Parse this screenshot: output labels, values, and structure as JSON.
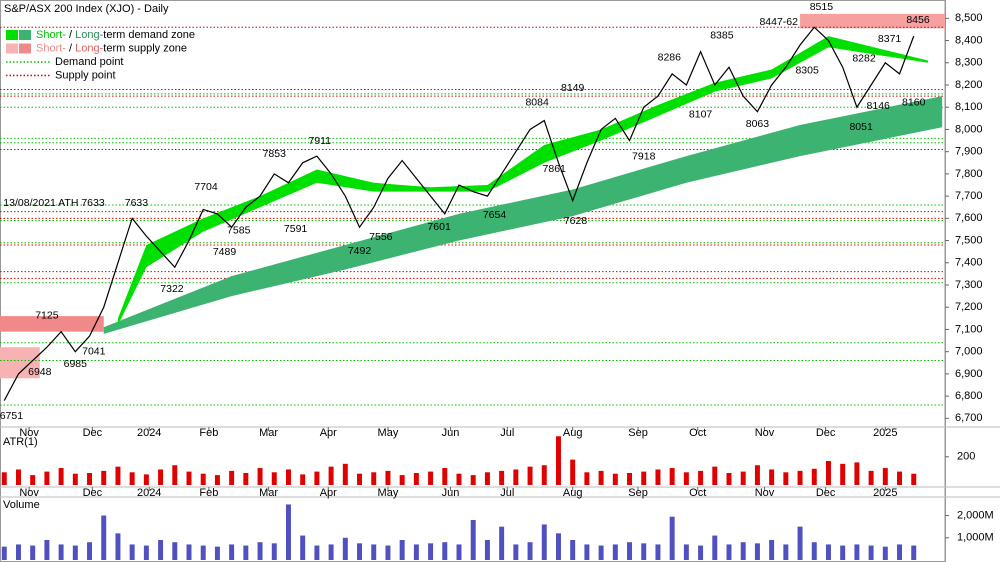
{
  "chart_data": {
    "type": "line",
    "title": "S&P/ASX 200 Index (XJO) - Daily",
    "values": [
      6780,
      6900,
      6960,
      7020,
      7090,
      7000,
      7070,
      7200,
      7400,
      7600,
      7520,
      7450,
      7380,
      7500,
      7640,
      7620,
      7560,
      7650,
      7700,
      7800,
      7760,
      7850,
      7880,
      7800,
      7700,
      7560,
      7650,
      7780,
      7860,
      7780,
      7700,
      7620,
      7750,
      7720,
      7700,
      7800,
      7900,
      8000,
      8040,
      7850,
      7680,
      7850,
      8000,
      8050,
      7950,
      8100,
      8150,
      8250,
      8200,
      8350,
      8200,
      8280,
      8150,
      8080,
      8200,
      8280,
      8380,
      8460,
      8400,
      8280,
      8100,
      8200,
      8300,
      8250,
      8420
    ],
    "color": "#000000",
    "xlim": [
      -0.3,
      66.2
    ],
    "xticks": [
      {
        "value": 1.75,
        "label": "Nov"
      },
      {
        "value": 6.2,
        "label": "Dec"
      },
      {
        "value": 10.2,
        "label": "2024"
      },
      {
        "value": 14.4,
        "label": "Feb"
      },
      {
        "value": 18.6,
        "label": "Mar"
      },
      {
        "value": 22.8,
        "label": "Apr"
      },
      {
        "value": 27,
        "label": "May"
      },
      {
        "value": 31.4,
        "label": "Jun"
      },
      {
        "value": 35.4,
        "label": "Jul"
      },
      {
        "value": 40,
        "label": "Aug"
      },
      {
        "value": 44.6,
        "label": "Sep"
      },
      {
        "value": 48.8,
        "label": "Oct"
      },
      {
        "value": 53.5,
        "label": "Nov"
      },
      {
        "value": 57.8,
        "label": "Dec"
      },
      {
        "value": 62,
        "label": "2025"
      }
    ],
    "ylim": [
      6670,
      8560
    ],
    "yticks": [
      {
        "value": 6700,
        "label": "6,700"
      },
      {
        "value": 6800,
        "label": "6,800"
      },
      {
        "value": 6900,
        "label": "6,900"
      },
      {
        "value": 7000,
        "label": "7,000"
      },
      {
        "value": 7100,
        "label": "7,100"
      },
      {
        "value": 7200,
        "label": "7,200"
      },
      {
        "value": 7300,
        "label": "7,300"
      },
      {
        "value": 7400,
        "label": "7,400"
      },
      {
        "value": 7500,
        "label": "7,500"
      },
      {
        "value": 7600,
        "label": "7,600"
      },
      {
        "value": 7700,
        "label": "7,700"
      },
      {
        "value": 7800,
        "label": "7,800"
      },
      {
        "value": 7900,
        "label": "7,900"
      },
      {
        "value": 8000,
        "label": "8,000"
      },
      {
        "value": 8100,
        "label": "8,100"
      },
      {
        "value": 8200,
        "label": "8,200"
      },
      {
        "value": 8300,
        "label": "8,300"
      },
      {
        "value": 8400,
        "label": "8,400"
      },
      {
        "value": 8500,
        "label": "8,500"
      }
    ],
    "demand_zone_long": {
      "color": "#3cb371",
      "x": [
        7,
        16,
        24,
        32,
        40,
        48,
        56,
        66
      ],
      "lower": [
        7080,
        7250,
        7370,
        7500,
        7610,
        7760,
        7880,
        8010
      ],
      "upper": [
        7110,
        7340,
        7480,
        7620,
        7730,
        7880,
        8020,
        8150
      ]
    },
    "demand_zone_short": {
      "color": "#00e000",
      "x": [
        8,
        10,
        14,
        18,
        22,
        26,
        30,
        34,
        38,
        42,
        46,
        50,
        54,
        58,
        65
      ],
      "lower": [
        7120,
        7380,
        7540,
        7650,
        7760,
        7720,
        7720,
        7720,
        7850,
        7950,
        8060,
        8170,
        8230,
        8370,
        8300
      ],
      "upper": [
        7150,
        7480,
        7600,
        7700,
        7820,
        7760,
        7740,
        7750,
        7930,
        8000,
        8110,
        8210,
        8270,
        8420,
        8310
      ]
    },
    "supply_zones": [
      {
        "color": "#f7b3b3",
        "x": [
          -0.3,
          2.5
        ],
        "lower": 6880,
        "upper": 7020
      },
      {
        "color": "#f08a8a",
        "x": [
          -0.3,
          7
        ],
        "lower": 7090,
        "upper": 7160
      },
      {
        "color": "#f6a0a0",
        "x": [
          56,
          66.2
        ],
        "lower": 8455,
        "upper": 8520
      }
    ],
    "demand_points": {
      "color": "#00c000",
      "levels": [
        6760,
        6960,
        7040,
        7310,
        7490,
        7590,
        7660,
        7940,
        7960,
        8100,
        8160
      ]
    },
    "supply_points": {
      "color": "#e00000",
      "levels": [
        7330,
        7360,
        7480,
        7600,
        7630,
        7910,
        8150,
        8180,
        8460
      ]
    },
    "annotations": [
      {
        "text": "6751",
        "x": 0.5,
        "y": 6751,
        "pos": "below"
      },
      {
        "text": "6948",
        "x": 2.5,
        "y": 6948,
        "pos": "below"
      },
      {
        "text": "7125",
        "x": 3,
        "y": 7125,
        "pos": "above"
      },
      {
        "text": "6985",
        "x": 5,
        "y": 6985,
        "pos": "below"
      },
      {
        "text": "7041",
        "x": 6.3,
        "y": 7041,
        "pos": "below"
      },
      {
        "text": "13/08/2021 ATH 7633",
        "x": 3.5,
        "y": 7633,
        "pos": "above"
      },
      {
        "text": "7633",
        "x": 9.3,
        "y": 7633,
        "pos": "above"
      },
      {
        "text": "7322",
        "x": 11.8,
        "y": 7322,
        "pos": "below"
      },
      {
        "text": "7704",
        "x": 14.2,
        "y": 7704,
        "pos": "above"
      },
      {
        "text": "7489",
        "x": 15.5,
        "y": 7489,
        "pos": "below"
      },
      {
        "text": "7585",
        "x": 16.5,
        "y": 7585,
        "pos": "below"
      },
      {
        "text": "7853",
        "x": 19,
        "y": 7853,
        "pos": "above"
      },
      {
        "text": "7591",
        "x": 20.5,
        "y": 7591,
        "pos": "below"
      },
      {
        "text": "7911",
        "x": 22.2,
        "y": 7911,
        "pos": "above"
      },
      {
        "text": "7492",
        "x": 25,
        "y": 7492,
        "pos": "below"
      },
      {
        "text": "7556",
        "x": 26.5,
        "y": 7556,
        "pos": "below"
      },
      {
        "text": "7601",
        "x": 30.6,
        "y": 7601,
        "pos": "below"
      },
      {
        "text": "7654",
        "x": 34.5,
        "y": 7654,
        "pos": "below"
      },
      {
        "text": "8084",
        "x": 37.5,
        "y": 8084,
        "pos": "above"
      },
      {
        "text": "7861",
        "x": 38.7,
        "y": 7861,
        "pos": "below"
      },
      {
        "text": "8149",
        "x": 40,
        "y": 8149,
        "pos": "above"
      },
      {
        "text": "7628",
        "x": 40.2,
        "y": 7628,
        "pos": "below"
      },
      {
        "text": "7918",
        "x": 45,
        "y": 7918,
        "pos": "below"
      },
      {
        "text": "8286",
        "x": 46.8,
        "y": 8286,
        "pos": "above"
      },
      {
        "text": "8385",
        "x": 50.5,
        "y": 8385,
        "pos": "above"
      },
      {
        "text": "8107",
        "x": 49,
        "y": 8107,
        "pos": "below"
      },
      {
        "text": "8063",
        "x": 53,
        "y": 8063,
        "pos": "below"
      },
      {
        "text": "8447-62",
        "x": 54.5,
        "y": 8447,
        "pos": "above"
      },
      {
        "text": "8515",
        "x": 57.5,
        "y": 8515,
        "pos": "above"
      },
      {
        "text": "8305",
        "x": 56.5,
        "y": 8305,
        "pos": "below"
      },
      {
        "text": "8282",
        "x": 60.5,
        "y": 8282,
        "pos": "above"
      },
      {
        "text": "8051",
        "x": 60.3,
        "y": 8051,
        "pos": "below"
      },
      {
        "text": "8146",
        "x": 61.5,
        "y": 8146,
        "pos": "below"
      },
      {
        "text": "8371",
        "x": 62.3,
        "y": 8371,
        "pos": "above"
      },
      {
        "text": "8160",
        "x": 64,
        "y": 8160,
        "pos": "below"
      },
      {
        "text": "8456",
        "x": 64.3,
        "y": 8456,
        "pos": "above"
      }
    ],
    "legend": [
      {
        "swatches": [
          "#00e000",
          "#3cb371"
        ],
        "parts": [
          {
            "text": "Short-",
            "color": "#00c000"
          },
          {
            "text": " / ",
            "color": "#000000"
          },
          {
            "text": "Long-",
            "color": "#2e8b57"
          },
          {
            "text": "term demand zone",
            "color": "#000000"
          }
        ]
      },
      {
        "swatches": [
          "#f7b3b3",
          "#f08a8a"
        ],
        "parts": [
          {
            "text": "Short-",
            "color": "#f08a8a"
          },
          {
            "text": " / ",
            "color": "#000000"
          },
          {
            "text": "Long-",
            "color": "#e06060"
          },
          {
            "text": "term supply zone",
            "color": "#000000"
          }
        ]
      },
      {
        "line": "#00c000",
        "parts": [
          {
            "text": "Demand point",
            "color": "#000000"
          }
        ]
      },
      {
        "line": "#e00000",
        "parts": [
          {
            "text": "Supply point",
            "color": "#000000"
          }
        ]
      }
    ],
    "atr": {
      "label": "ATR(1)",
      "color": "#e00000",
      "ylim": [
        0,
        340
      ],
      "yticks": [
        200
      ],
      "values": [
        90,
        110,
        70,
        95,
        120,
        80,
        85,
        100,
        130,
        90,
        75,
        110,
        140,
        95,
        80,
        70,
        100,
        85,
        120,
        90,
        110,
        75,
        95,
        130,
        150,
        80,
        90,
        100,
        70,
        85,
        95,
        120,
        80,
        70,
        90,
        100,
        110,
        130,
        140,
        345,
        180,
        90,
        100,
        80,
        85,
        95,
        110,
        120,
        90,
        100,
        130,
        85,
        95,
        140,
        110,
        90,
        100,
        115,
        170,
        150,
        160,
        100,
        120,
        95,
        80
      ]
    },
    "volume": {
      "label": "Volume",
      "color": "#5050c0",
      "ylim": [
        0,
        2700
      ],
      "yticks": [
        {
          "value": 2000,
          "label": "2,000M"
        },
        {
          "value": 1000,
          "label": "1,000M"
        }
      ],
      "values": [
        600,
        700,
        650,
        900,
        700,
        650,
        800,
        2000,
        1200,
        700,
        650,
        900,
        800,
        700,
        650,
        600,
        700,
        650,
        800,
        750,
        2500,
        1100,
        650,
        700,
        1000,
        750,
        700,
        650,
        900,
        700,
        750,
        800,
        700,
        1800,
        900,
        1500,
        700,
        800,
        1600,
        1200,
        900,
        700,
        650,
        700,
        800,
        750,
        700,
        1950,
        700,
        650,
        1100,
        700,
        800,
        750,
        900,
        700,
        1500,
        800,
        700,
        650,
        700,
        650,
        600,
        700,
        650
      ]
    }
  }
}
